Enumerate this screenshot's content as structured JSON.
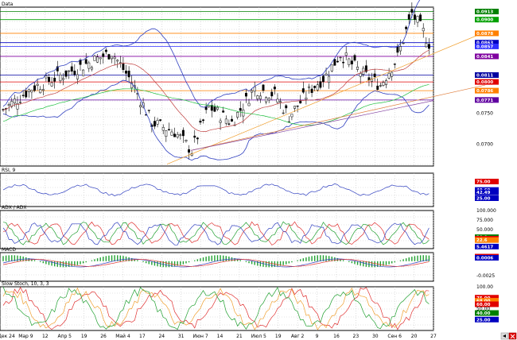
{
  "chart_data": [
    {
      "type": "candlestick",
      "title": "Data",
      "ylim": [
        0.0665,
        0.092
      ],
      "ticks": [
        {
          "label": "0.0750",
          "value": 0.075
        },
        {
          "label": "0.0700",
          "value": 0.07
        }
      ],
      "series_note": "Candles with Bollinger bands, moving averages, horizontal levels and trend lines",
      "levels": [
        {
          "label": "0.0913",
          "value": 0.0913,
          "color": "#008000"
        },
        {
          "label": "0.0900",
          "value": 0.09,
          "color": "#00a000"
        },
        {
          "label": "0.0878",
          "value": 0.0878,
          "color": "#ff8000"
        },
        {
          "label": "0.0863",
          "value": 0.0863,
          "color": "#0000c0"
        },
        {
          "label": "0.0857",
          "value": 0.0857,
          "color": "#3030ff"
        },
        {
          "label": "0.0841",
          "value": 0.0841,
          "color": "#8000a0"
        },
        {
          "label": "0.0811",
          "value": 0.0811,
          "color": "#0000a0"
        },
        {
          "label": "0.0800",
          "value": 0.08,
          "color": "#e00000"
        },
        {
          "label": "0.0786",
          "value": 0.0786,
          "color": "#ff8000"
        },
        {
          "label": "0.0771",
          "value": 0.0771,
          "color": "#6000a0"
        }
      ]
    },
    {
      "type": "line",
      "title": "RSI, 9",
      "ylim": [
        0,
        100
      ],
      "levels": [
        {
          "label": "75.00",
          "value": 75,
          "color": "#e00000"
        },
        {
          "label": "49.69",
          "value": 49.69,
          "color": "#0000c0"
        },
        {
          "label": "42.49",
          "value": 42.49,
          "color": "#0000c0"
        },
        {
          "label": "25.00",
          "value": 25,
          "color": "#0000c0"
        }
      ]
    },
    {
      "type": "line",
      "title": "ADX / ADX",
      "ylim": [
        0,
        100
      ],
      "ticks": [
        {
          "label": "100.000",
          "value": 100
        },
        {
          "label": "75.000",
          "value": 75
        },
        {
          "label": "50.000",
          "value": 50
        }
      ],
      "levels": [
        {
          "label": "30.0",
          "value": 30,
          "color": "#008000"
        },
        {
          "label": "26.0",
          "value": 26,
          "color": "#e00000"
        },
        {
          "label": "22.6",
          "value": 22.6,
          "color": "#ff8000"
        },
        {
          "label": "5.4617",
          "value": 5.4617,
          "color": "#0000c0"
        }
      ]
    },
    {
      "type": "bar",
      "title": "MACD",
      "ylim": [
        -0.0035,
        0.0015
      ],
      "ticks": [
        {
          "label": "-0.0025",
          "value": -0.0025
        }
      ],
      "levels": [
        {
          "label": "0.0008",
          "value": 0.0008,
          "color": "#e00000"
        },
        {
          "label": "0.0006",
          "value": 0.0006,
          "color": "#0000c0"
        }
      ]
    },
    {
      "type": "line",
      "title": "Slow Stoch, 10, 3, 3",
      "ylim": [
        0,
        100
      ],
      "ticks": [
        {
          "label": "100.00",
          "value": 100
        },
        {
          "label": "50.00",
          "value": 50
        }
      ],
      "levels": [
        {
          "label": "75.00",
          "value": 75,
          "color": "#e00000"
        },
        {
          "label": "68.00",
          "value": 68,
          "color": "#ff8000"
        },
        {
          "label": "60.00",
          "value": 60,
          "color": "#e00000"
        },
        {
          "label": "40.00",
          "value": 40,
          "color": "#008000"
        },
        {
          "label": "25.00",
          "value": 25,
          "color": "#0000c0"
        }
      ]
    }
  ],
  "x_axis": {
    "labels": [
      "Дек 24",
      "Мар 9",
      "12",
      "Апр 5",
      "19",
      "26",
      "Май 4",
      "17",
      "24",
      "31",
      "Июн 7",
      "14",
      "21",
      "Июл 5",
      "19",
      "Авг 2",
      "9",
      "16",
      "23",
      "30",
      "Сен 6",
      "20",
      "27"
    ]
  }
}
